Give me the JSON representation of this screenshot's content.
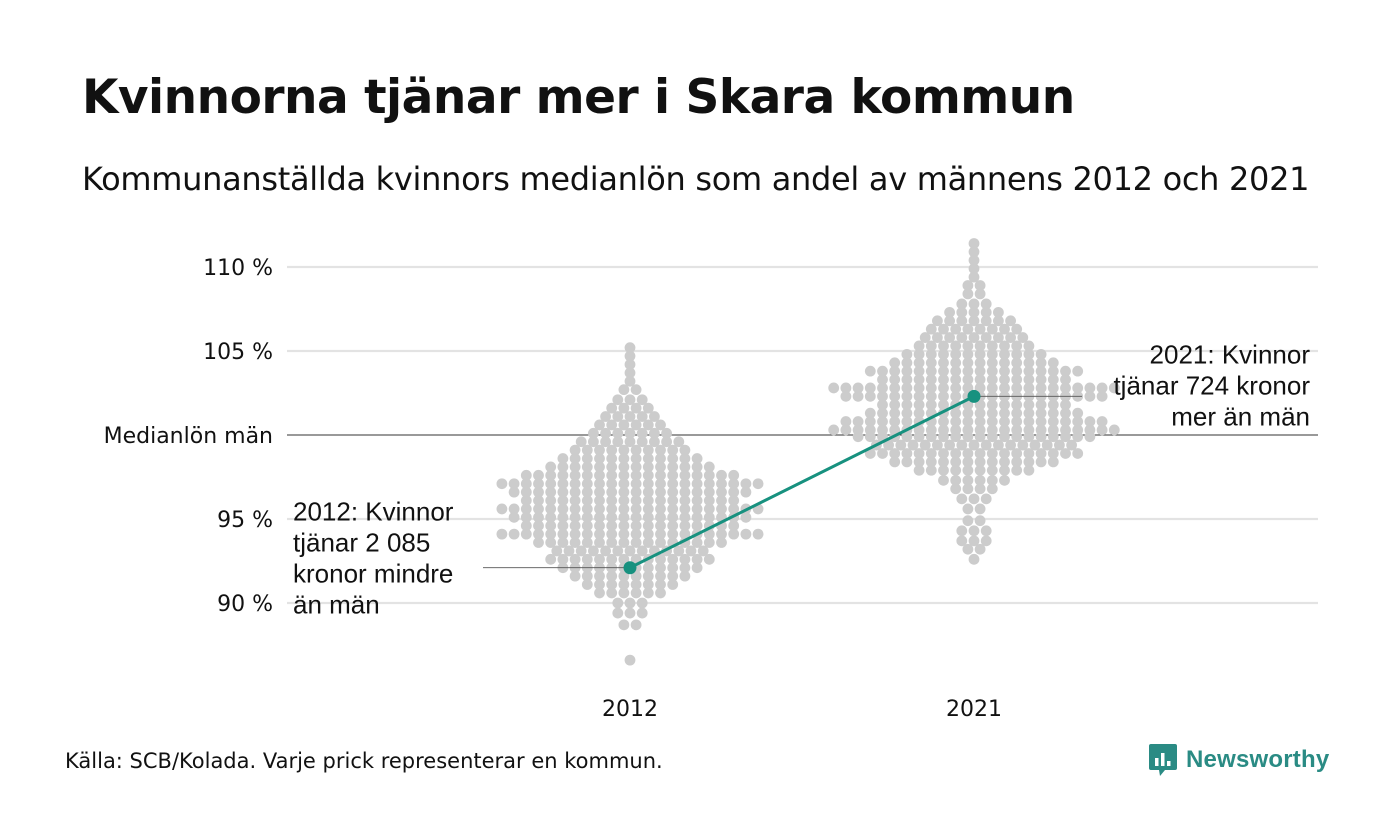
{
  "title": "Kvinnorna tjänar mer i Skara kommun",
  "subtitle": "Kommunanställda kvinnors medianlön som andel av männens 2012 och 2021",
  "caption": "Källa: SCB/Kolada. Varje prick representerar en kommun.",
  "brand": {
    "name": "Newsworthy",
    "logo_icon": "bar-chart-logo-icon",
    "color": "#2a8b84"
  },
  "chart_data": {
    "type": "scatter",
    "title": "Kvinnorna tjänar mer i Skara kommun",
    "subtitle": "Kommunanställda kvinnors medianlön som andel av männens 2012 och 2021",
    "categories": [
      "2012",
      "2021"
    ],
    "y_ticks": [
      {
        "value": 90,
        "label": "90 %"
      },
      {
        "value": 95,
        "label": "95 %"
      },
      {
        "value": 100,
        "label": "Medianlön män"
      },
      {
        "value": 105,
        "label": "105 %"
      },
      {
        "value": 110,
        "label": "110 %"
      }
    ],
    "ylim": [
      86,
      112
    ],
    "grid": true,
    "reference_line": {
      "value": 100,
      "label": "Medianlön män"
    },
    "point_count_approx": 290,
    "distributions": [
      {
        "category": "2012",
        "median": 97.1,
        "min": 86.6,
        "max": 105.2,
        "color": "#cccccc",
        "shape": [
          {
            "y": 86.6,
            "n": 1
          },
          {
            "y": 88.7,
            "n": 2
          },
          {
            "y": 89.4,
            "n": 3
          },
          {
            "y": 90.0,
            "n": 3
          },
          {
            "y": 90.6,
            "n": 6
          },
          {
            "y": 91.1,
            "n": 8
          },
          {
            "y": 91.6,
            "n": 10
          },
          {
            "y": 92.1,
            "n": 12
          },
          {
            "y": 92.6,
            "n": 14
          },
          {
            "y": 93.1,
            "n": 13
          },
          {
            "y": 93.6,
            "n": 16
          },
          {
            "y": 94.1,
            "n": 22
          },
          {
            "y": 94.6,
            "n": 18
          },
          {
            "y": 95.1,
            "n": 20
          },
          {
            "y": 95.6,
            "n": 22
          },
          {
            "y": 96.1,
            "n": 18
          },
          {
            "y": 96.6,
            "n": 20
          },
          {
            "y": 97.1,
            "n": 22
          },
          {
            "y": 97.6,
            "n": 18
          },
          {
            "y": 98.1,
            "n": 14
          },
          {
            "y": 98.6,
            "n": 12
          },
          {
            "y": 99.1,
            "n": 10
          },
          {
            "y": 99.6,
            "n": 9
          },
          {
            "y": 100.1,
            "n": 7
          },
          {
            "y": 100.6,
            "n": 6
          },
          {
            "y": 101.1,
            "n": 5
          },
          {
            "y": 101.6,
            "n": 4
          },
          {
            "y": 102.1,
            "n": 3
          },
          {
            "y": 102.7,
            "n": 2
          },
          {
            "y": 103.2,
            "n": 1
          },
          {
            "y": 103.7,
            "n": 1
          },
          {
            "y": 104.2,
            "n": 1
          },
          {
            "y": 104.7,
            "n": 1
          },
          {
            "y": 105.2,
            "n": 1
          }
        ]
      },
      {
        "category": "2021",
        "median": 100.4,
        "min": 92.6,
        "max": 111.4,
        "color": "#cccccc",
        "shape": [
          {
            "y": 92.6,
            "n": 1
          },
          {
            "y": 93.2,
            "n": 2
          },
          {
            "y": 93.7,
            "n": 3
          },
          {
            "y": 94.3,
            "n": 3
          },
          {
            "y": 94.9,
            "n": 2
          },
          {
            "y": 95.6,
            "n": 2
          },
          {
            "y": 96.2,
            "n": 3
          },
          {
            "y": 96.8,
            "n": 4
          },
          {
            "y": 97.3,
            "n": 6
          },
          {
            "y": 97.9,
            "n": 10
          },
          {
            "y": 98.4,
            "n": 14
          },
          {
            "y": 98.9,
            "n": 18
          },
          {
            "y": 99.4,
            "n": 17
          },
          {
            "y": 99.9,
            "n": 20
          },
          {
            "y": 100.3,
            "n": 24
          },
          {
            "y": 100.8,
            "n": 22
          },
          {
            "y": 101.3,
            "n": 18
          },
          {
            "y": 101.8,
            "n": 16
          },
          {
            "y": 102.3,
            "n": 22
          },
          {
            "y": 102.8,
            "n": 24
          },
          {
            "y": 103.3,
            "n": 16
          },
          {
            "y": 103.8,
            "n": 18
          },
          {
            "y": 104.3,
            "n": 14
          },
          {
            "y": 104.8,
            "n": 12
          },
          {
            "y": 105.3,
            "n": 10
          },
          {
            "y": 105.8,
            "n": 9
          },
          {
            "y": 106.3,
            "n": 8
          },
          {
            "y": 106.8,
            "n": 7
          },
          {
            "y": 107.3,
            "n": 5
          },
          {
            "y": 107.8,
            "n": 3
          },
          {
            "y": 108.4,
            "n": 2
          },
          {
            "y": 108.9,
            "n": 2
          },
          {
            "y": 109.4,
            "n": 1
          },
          {
            "y": 109.9,
            "n": 1
          },
          {
            "y": 110.4,
            "n": 1
          },
          {
            "y": 110.9,
            "n": 1
          },
          {
            "y": 111.4,
            "n": 1
          }
        ]
      }
    ],
    "highlight": {
      "name": "Skara kommun",
      "color": "#17917f",
      "points": [
        {
          "x": "2012",
          "y": 92.1
        },
        {
          "x": "2021",
          "y": 102.3
        }
      ]
    },
    "annotations": [
      {
        "x": "2012",
        "y": 92.1,
        "lines": [
          "2012: Kvinnor",
          "tjänar 2 085",
          "kronor mindre",
          "än män"
        ],
        "side": "left"
      },
      {
        "x": "2021",
        "y": 102.3,
        "lines": [
          "2021: Kvinnor",
          "tjänar 724 kronor",
          "mer än män"
        ],
        "side": "right"
      }
    ]
  }
}
